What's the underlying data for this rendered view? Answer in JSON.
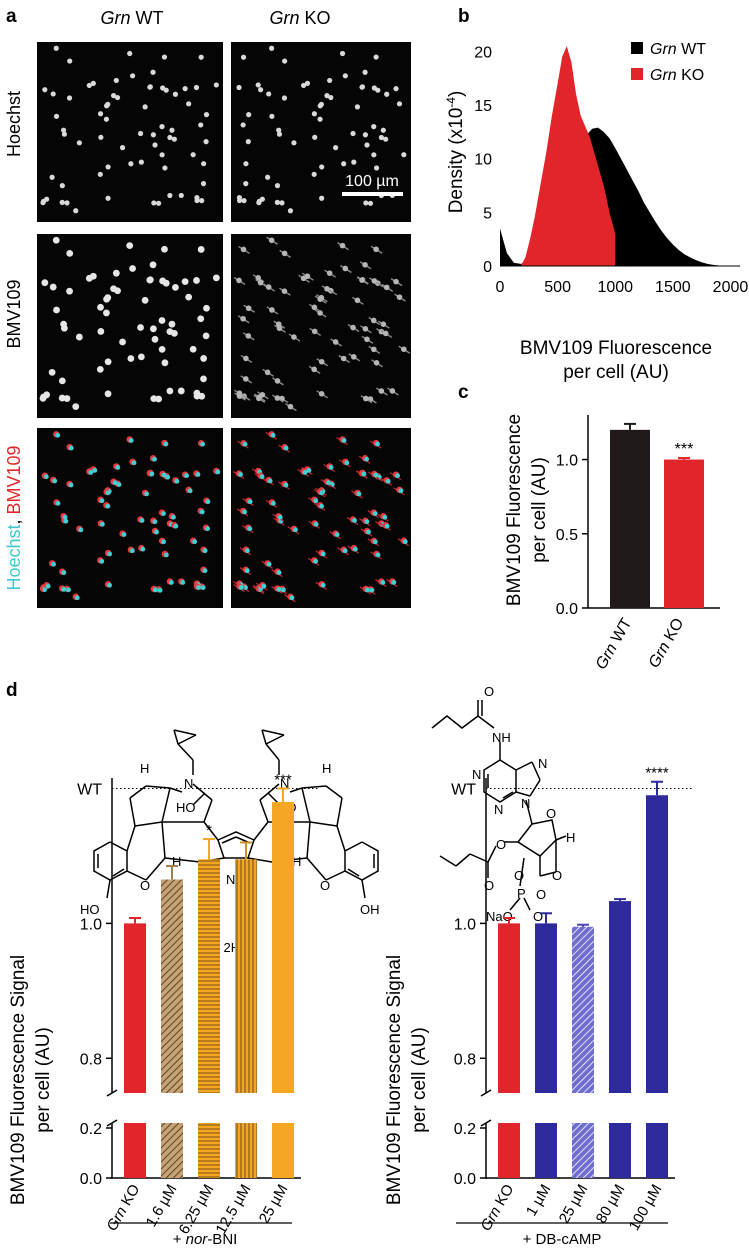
{
  "panels": {
    "a": "a",
    "b": "b",
    "c": "c",
    "d": "d"
  },
  "panel_a": {
    "col_labels": [
      {
        "gene": "Grn",
        "suffix": " WT"
      },
      {
        "gene": "Grn",
        "suffix": " KO"
      }
    ],
    "row_labels": [
      "Hoechst",
      "BMV109"
    ],
    "merge_label": {
      "part1": "Hoechst",
      "sep": ", ",
      "part2": "BMV109"
    },
    "scale_bar": "100 µm",
    "colors": {
      "nuclei": "#3fd0d4",
      "probe": "#e8383d"
    }
  },
  "chart_data": [
    {
      "id": "b",
      "type": "area",
      "ylabel_main": "Density (x10",
      "ylabel_sup": "-4",
      "ylabel_end": ")",
      "xlabel_line1": "BMV109 Fluorescence",
      "xlabel_line2": "per cell (AU)",
      "xlim": [
        0,
        2100
      ],
      "ylim": [
        0,
        22
      ],
      "xticks": [
        "0",
        "500",
        "1000",
        "1500",
        "2000"
      ],
      "yticks": [
        "0",
        "5",
        "10",
        "15",
        "20"
      ],
      "legend": [
        {
          "gene": "Grn",
          "suffix": " WT",
          "color": "#000000"
        },
        {
          "gene": "Grn",
          "suffix": " KO",
          "color": "#e1252b"
        }
      ],
      "series": [
        {
          "name": "Grn WT",
          "color": "#000000",
          "x": [
            0,
            60,
            120,
            180,
            220,
            260,
            300,
            350,
            400,
            450,
            500,
            550,
            600,
            650,
            700,
            750,
            800,
            850,
            900,
            950,
            1000,
            1050,
            1100,
            1150,
            1200,
            1250,
            1300,
            1350,
            1400,
            1450,
            1500,
            1550,
            1600,
            1650,
            1700,
            1750,
            1800,
            1850,
            1900,
            1950,
            2000,
            2050,
            2100
          ],
          "y": [
            3.5,
            1.2,
            0.3,
            0.2,
            0.3,
            0.8,
            1.8,
            3.2,
            4.5,
            5.5,
            6.5,
            7.6,
            8.8,
            10,
            11.2,
            12.2,
            12.8,
            12.9,
            12.5,
            11.9,
            11,
            10,
            9,
            8,
            7,
            5.9,
            5,
            4.1,
            3.3,
            2.6,
            2,
            1.5,
            1.1,
            0.8,
            0.55,
            0.35,
            0.2,
            0.1,
            0.05,
            0.02,
            0,
            0,
            0
          ]
        },
        {
          "name": "Grn KO",
          "color": "#e1252b",
          "x": [
            180,
            220,
            260,
            300,
            350,
            400,
            450,
            500,
            540,
            580,
            620,
            660,
            700,
            740,
            780,
            820,
            860,
            900,
            950,
            1000
          ],
          "y": [
            0,
            0.8,
            2.5,
            4.5,
            7.5,
            10.5,
            14,
            17,
            19.5,
            20.5,
            19,
            16,
            14,
            13,
            12,
            10.5,
            9,
            7.5,
            5,
            3
          ]
        }
      ]
    },
    {
      "id": "c",
      "type": "bar",
      "ylabel_line1": "BMV109 Fluorescence",
      "ylabel_line2": "per cell (AU)",
      "ylim": [
        0,
        1.3
      ],
      "yticks": [
        "0.0",
        "0.5",
        "1.0"
      ],
      "categories": [
        {
          "gene": "Grn",
          "suffix": " WT"
        },
        {
          "gene": "Grn",
          "suffix": " KO"
        }
      ],
      "values": [
        1.2,
        1.0
      ],
      "errors": [
        0.04,
        0.01
      ],
      "colors": [
        "#1f1a17",
        "#e1252b"
      ],
      "significance": [
        "",
        "***"
      ]
    },
    {
      "id": "d-left",
      "type": "bar",
      "ylabel_line1": "BMV109 Fluorescence Signal",
      "ylabel_line2": "per cell (AU)",
      "yticks": [
        "0.0",
        "0.2",
        "0.8",
        "1.0"
      ],
      "reference_label": "WT",
      "reference_value": 1.2,
      "categories": [
        "Grn KO",
        "1.6 µM",
        "6.25 µM",
        "12.5 µM",
        "25 µM"
      ],
      "values": [
        1.0,
        1.065,
        1.095,
        1.095,
        1.18
      ],
      "errors": [
        0.008,
        0.02,
        0.03,
        0.025,
        0.02
      ],
      "colors": [
        "#e1252b",
        "#a07d4f",
        "#f5a623",
        "#c9902f",
        "#f5a623"
      ],
      "patterns": [
        "solid",
        "diag",
        "hlines",
        "vlines",
        "solid"
      ],
      "significance": [
        "",
        "",
        "*",
        "",
        "***"
      ],
      "group_label_pre": "+ ",
      "group_label_it": "nor",
      "group_label_post": "-BNI"
    },
    {
      "id": "d-right",
      "type": "bar",
      "ylabel_line1": "BMV109 Fluorescence Signal",
      "ylabel_line2": "per cell (AU)",
      "yticks": [
        "0.0",
        "0.2",
        "0.8",
        "1.0"
      ],
      "reference_label": "WT",
      "reference_value": 1.2,
      "categories": [
        "Grn KO",
        "1 µM",
        "25 µM",
        "80 µM",
        "100 µM"
      ],
      "values": [
        1.0,
        1.0,
        0.995,
        1.033,
        1.19
      ],
      "errors": [
        0.008,
        0.015,
        0.003,
        0.003,
        0.02
      ],
      "colors": [
        "#e1252b",
        "#2e2a9c",
        "#4a48b8",
        "#2e2a9c",
        "#2e2a9c"
      ],
      "patterns": [
        "solid",
        "solid",
        "diag",
        "solid",
        "solid"
      ],
      "significance": [
        "",
        "",
        "",
        "",
        "****"
      ],
      "group_label_pre": "+ DB-cAMP",
      "group_label_it": "",
      "group_label_post": ""
    }
  ],
  "structures": {
    "left_salt": "2HCl",
    "labels_left": [
      "H",
      "H",
      "N",
      "N",
      "HO",
      "HO",
      "H",
      "H",
      "NH",
      "HO",
      "OH",
      "O",
      "O"
    ],
    "labels_right": [
      "O",
      "NH",
      "N",
      "N",
      "N",
      "N",
      "O",
      "H",
      "O",
      "O",
      "O",
      "O",
      "P",
      "O",
      "NaO",
      "O"
    ]
  }
}
